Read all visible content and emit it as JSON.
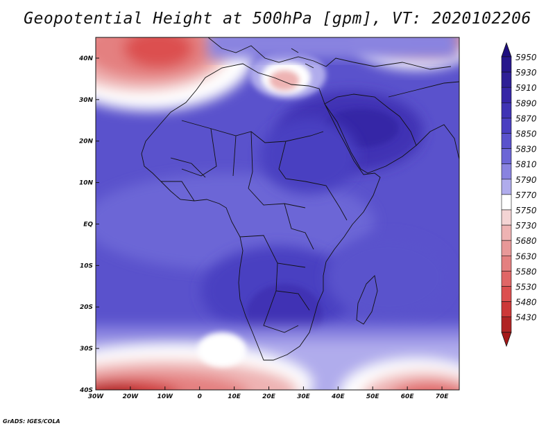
{
  "title": "Geopotential Height at 500hPa [gpm], VT: 2020102206",
  "credit": "GrADS: IGES/COLA",
  "map": {
    "lon_range": [
      -30,
      75
    ],
    "lat_range": [
      -40,
      45
    ],
    "lon_ticks": [
      {
        "value": -30,
        "label": "30W"
      },
      {
        "value": -20,
        "label": "20W"
      },
      {
        "value": -10,
        "label": "10W"
      },
      {
        "value": 0,
        "label": "0"
      },
      {
        "value": 10,
        "label": "10E"
      },
      {
        "value": 20,
        "label": "20E"
      },
      {
        "value": 30,
        "label": "30E"
      },
      {
        "value": 40,
        "label": "40E"
      },
      {
        "value": 50,
        "label": "50E"
      },
      {
        "value": 60,
        "label": "60E"
      },
      {
        "value": 70,
        "label": "70E"
      }
    ],
    "lat_ticks": [
      {
        "value": 40,
        "label": "40N"
      },
      {
        "value": 30,
        "label": "30N"
      },
      {
        "value": 20,
        "label": "20N"
      },
      {
        "value": 10,
        "label": "10N"
      },
      {
        "value": 0,
        "label": "EQ"
      },
      {
        "value": -10,
        "label": "10S"
      },
      {
        "value": -20,
        "label": "20S"
      },
      {
        "value": -30,
        "label": "30S"
      },
      {
        "value": -40,
        "label": "40S"
      }
    ]
  },
  "colorbar": {
    "levels": [
      {
        "label": "5950",
        "color": "#27178c"
      },
      {
        "label": "5930",
        "color": "#2e1f96"
      },
      {
        "label": "5910",
        "color": "#3626a6"
      },
      {
        "label": "5890",
        "color": "#3f33b4"
      },
      {
        "label": "5870",
        "color": "#4a3fc1"
      },
      {
        "label": "5850",
        "color": "#5a52cc"
      },
      {
        "label": "5830",
        "color": "#6c66d6"
      },
      {
        "label": "5810",
        "color": "#8983e0"
      },
      {
        "label": "5790",
        "color": "#b0acec"
      },
      {
        "label": "5770",
        "color": "#ffffff"
      },
      {
        "label": "5750",
        "color": "#f4d4d4"
      },
      {
        "label": "5730",
        "color": "#eeb3b3"
      },
      {
        "label": "5680",
        "color": "#e89898"
      },
      {
        "label": "5630",
        "color": "#e48080"
      },
      {
        "label": "5580",
        "color": "#e06666"
      },
      {
        "label": "5530",
        "color": "#dc4f4f"
      },
      {
        "label": "5480",
        "color": "#cc3838"
      },
      {
        "label": "5430",
        "color": "#b02424"
      }
    ],
    "top_arrow_color": "#1f0f80",
    "bottom_arrow_color": "#a51818"
  }
}
